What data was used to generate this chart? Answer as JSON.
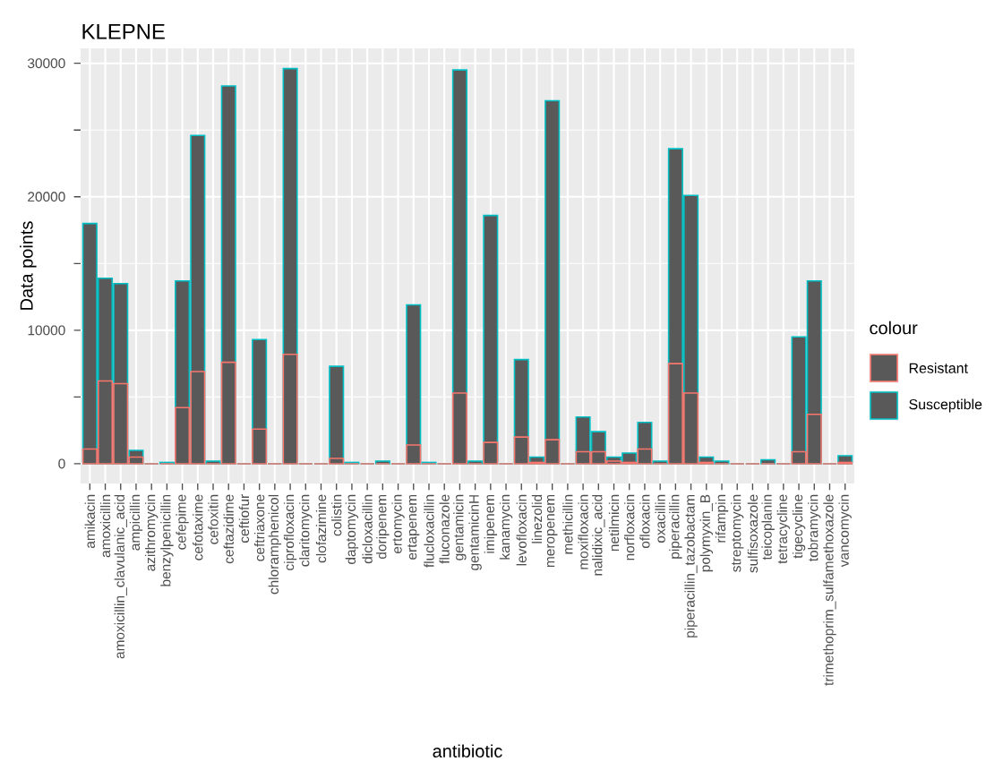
{
  "chart_data": {
    "type": "bar",
    "title": "KLEPNE",
    "xlabel": "antibiotic",
    "ylabel": "Data points",
    "legend_title": "colour",
    "categories": [
      "amikacin",
      "amoxicillin",
      "amoxicillin_clavulanic_acid",
      "ampicillin",
      "azithromycin",
      "benzylpenicillin",
      "cefepime",
      "cefotaxime",
      "cefoxitin",
      "ceftazidime",
      "ceftiofur",
      "ceftriaxone",
      "chloramphenicol",
      "ciprofloxacin",
      "claritomycin",
      "clofazimine",
      "colistin",
      "daptomycin",
      "dicloxacillin",
      "doripenem",
      "ertomycin",
      "ertapenem",
      "flucloxacillin",
      "fluconazole",
      "gentamicin",
      "gentamicinH",
      "imipenem",
      "kanamycin",
      "levofloxacin",
      "linezolid",
      "meropenem",
      "methicillin",
      "moxifloxacin",
      "nalidixic_acid",
      "netilmicin",
      "norfloxacin",
      "ofloxacin",
      "oxacillin",
      "piperacillin",
      "piperacillin_tazobactam",
      "polymyxin_B",
      "rifampin",
      "streptomycin",
      "sulfisoxazole",
      "teicoplanin",
      "tetracycline",
      "tigecycline",
      "tobramycin",
      "trimethoprim_sulfamethoxazole",
      "vancomycin"
    ],
    "series": [
      {
        "name": "Resistant",
        "color": "#f8766d",
        "values": [
          1100,
          6200,
          6000,
          500,
          0,
          0,
          4200,
          6900,
          0,
          7600,
          0,
          2600,
          0,
          8200,
          0,
          0,
          400,
          0,
          0,
          0,
          0,
          1400,
          0,
          0,
          5300,
          0,
          1600,
          0,
          2000,
          100,
          1800,
          0,
          900,
          900,
          200,
          100,
          1100,
          0,
          7500,
          5300,
          100,
          0,
          0,
          0,
          0,
          0,
          900,
          3700,
          0,
          100
        ]
      },
      {
        "name": "Susceptible",
        "color": "#00bfc4",
        "values": [
          18000,
          13900,
          13500,
          1000,
          0,
          100,
          13700,
          24600,
          200,
          28300,
          0,
          9300,
          0,
          29600,
          0,
          0,
          7300,
          100,
          0,
          200,
          0,
          11900,
          100,
          0,
          29500,
          200,
          18600,
          0,
          7800,
          500,
          27200,
          0,
          3500,
          2400,
          500,
          800,
          3100,
          200,
          23600,
          20100,
          500,
          200,
          0,
          0,
          300,
          0,
          9500,
          13700,
          0,
          600
        ]
      }
    ],
    "ylim": [
      -1480,
      31120
    ],
    "yticks": [
      0,
      10000,
      20000,
      30000
    ],
    "grid": true,
    "legend": "right"
  }
}
